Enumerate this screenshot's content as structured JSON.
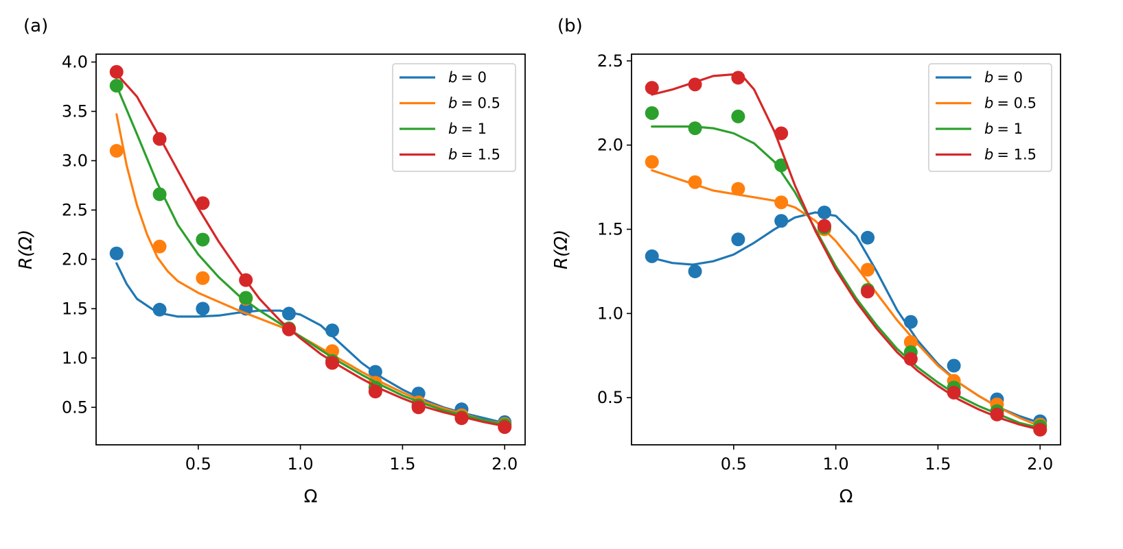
{
  "chart_data": [
    {
      "type": "line",
      "panel_label": "(a)",
      "xlabel": "Ω",
      "ylabel": "R(Ω)",
      "xlim": [
        0.0,
        2.1
      ],
      "ylim": [
        0.12,
        4.08
      ],
      "xticks": [
        0.5,
        1.0,
        1.5,
        2.0
      ],
      "xtick_labels": [
        "0.5",
        "1.0",
        "1.5",
        "2.0"
      ],
      "yticks": [
        0.5,
        1.0,
        1.5,
        2.0,
        2.5,
        3.0,
        3.5,
        4.0
      ],
      "ytick_labels": [
        "0.5",
        "1.0",
        "1.5",
        "2.0",
        "2.5",
        "3.0",
        "3.5",
        "4.0"
      ],
      "legend_position": "top-right",
      "series": [
        {
          "name": "b = 0",
          "label_var": "b",
          "label_val": "= 0",
          "color": "#1f77b4",
          "points": {
            "x": [
              0.1,
              0.311,
              0.522,
              0.733,
              0.944,
              1.156,
              1.367,
              1.578,
              1.789,
              2.0
            ],
            "y": [
              2.06,
              1.49,
              1.5,
              1.5,
              1.45,
              1.28,
              0.86,
              0.64,
              0.48,
              0.35
            ]
          },
          "curve": {
            "x": [
              0.1,
              0.15,
              0.2,
              0.3,
              0.4,
              0.5,
              0.6,
              0.7,
              0.8,
              0.9,
              1.0,
              1.1,
              1.2,
              1.3,
              1.4,
              1.5,
              1.6,
              1.7,
              1.8,
              1.9,
              2.0
            ],
            "y": [
              1.96,
              1.75,
              1.6,
              1.46,
              1.42,
              1.42,
              1.43,
              1.46,
              1.48,
              1.48,
              1.44,
              1.33,
              1.14,
              0.95,
              0.8,
              0.68,
              0.58,
              0.5,
              0.44,
              0.39,
              0.34
            ]
          }
        },
        {
          "name": "b = 0.5",
          "label_var": "b",
          "label_val": "= 0.5",
          "color": "#ff7f0e",
          "points": {
            "x": [
              0.1,
              0.311,
              0.522,
              0.733,
              0.944,
              1.156,
              1.367,
              1.578,
              1.789,
              2.0
            ],
            "y": [
              3.1,
              2.13,
              1.81,
              1.6,
              1.3,
              1.07,
              0.75,
              0.55,
              0.42,
              0.33
            ]
          },
          "curve": {
            "x": [
              0.1,
              0.15,
              0.2,
              0.25,
              0.3,
              0.35,
              0.4,
              0.5,
              0.6,
              0.7,
              0.8,
              0.9,
              1.0,
              1.1,
              1.2,
              1.3,
              1.4,
              1.5,
              1.6,
              1.7,
              1.8,
              1.9,
              2.0
            ],
            "y": [
              3.47,
              2.95,
              2.55,
              2.25,
              2.02,
              1.88,
              1.78,
              1.66,
              1.57,
              1.48,
              1.4,
              1.32,
              1.22,
              1.1,
              0.98,
              0.86,
              0.75,
              0.65,
              0.56,
              0.49,
              0.43,
              0.37,
              0.33
            ]
          }
        },
        {
          "name": "b = 1",
          "label_var": "b",
          "label_val": "= 1",
          "color": "#2ca02c",
          "points": {
            "x": [
              0.1,
              0.311,
              0.522,
              0.733,
              0.944,
              1.156,
              1.367,
              1.578,
              1.789,
              2.0
            ],
            "y": [
              3.76,
              2.66,
              2.2,
              1.61,
              1.3,
              0.97,
              0.7,
              0.52,
              0.4,
              0.32
            ]
          },
          "curve": {
            "x": [
              0.1,
              0.2,
              0.3,
              0.4,
              0.5,
              0.6,
              0.7,
              0.8,
              0.9,
              1.0,
              1.1,
              1.2,
              1.3,
              1.4,
              1.5,
              1.6,
              1.7,
              1.8,
              1.9,
              2.0
            ],
            "y": [
              3.76,
              3.27,
              2.77,
              2.35,
              2.05,
              1.82,
              1.63,
              1.48,
              1.35,
              1.22,
              1.08,
              0.95,
              0.83,
              0.72,
              0.62,
              0.54,
              0.47,
              0.42,
              0.37,
              0.32
            ]
          }
        },
        {
          "name": "b = 1.5",
          "label_var": "b",
          "label_val": "= 1.5",
          "color": "#d62728",
          "points": {
            "x": [
              0.1,
              0.311,
              0.522,
              0.733,
              0.944,
              1.156,
              1.367,
              1.578,
              1.789,
              2.0
            ],
            "y": [
              3.9,
              3.22,
              2.57,
              1.79,
              1.29,
              0.95,
              0.66,
              0.5,
              0.39,
              0.3
            ]
          },
          "curve": {
            "x": [
              0.1,
              0.2,
              0.3,
              0.4,
              0.5,
              0.6,
              0.7,
              0.8,
              0.9,
              1.0,
              1.1,
              1.2,
              1.3,
              1.4,
              1.5,
              1.6,
              1.7,
              1.8,
              1.9,
              2.0
            ],
            "y": [
              3.88,
              3.65,
              3.28,
              2.9,
              2.52,
              2.18,
              1.88,
              1.6,
              1.38,
              1.2,
              1.04,
              0.91,
              0.79,
              0.68,
              0.59,
              0.51,
              0.45,
              0.4,
              0.35,
              0.31
            ]
          }
        }
      ]
    },
    {
      "type": "line",
      "panel_label": "(b)",
      "xlabel": "Ω",
      "ylabel": "R(Ω)",
      "xlim": [
        0.0,
        2.1
      ],
      "ylim": [
        0.22,
        2.54
      ],
      "xticks": [
        0.5,
        1.0,
        1.5,
        2.0
      ],
      "xtick_labels": [
        "0.5",
        "1.0",
        "1.5",
        "2.0"
      ],
      "yticks": [
        0.5,
        1.0,
        1.5,
        2.0,
        2.5
      ],
      "ytick_labels": [
        "0.5",
        "1.0",
        "1.5",
        "2.0",
        "2.5"
      ],
      "legend_position": "top-right",
      "series": [
        {
          "name": "b = 0",
          "label_var": "b",
          "label_val": "= 0",
          "color": "#1f77b4",
          "points": {
            "x": [
              0.1,
              0.311,
              0.522,
              0.733,
              0.944,
              1.156,
              1.367,
              1.578,
              1.789,
              2.0
            ],
            "y": [
              1.34,
              1.25,
              1.44,
              1.55,
              1.6,
              1.45,
              0.95,
              0.69,
              0.49,
              0.36
            ]
          },
          "curve": {
            "x": [
              0.1,
              0.2,
              0.3,
              0.4,
              0.5,
              0.6,
              0.7,
              0.8,
              0.9,
              1.0,
              1.1,
              1.2,
              1.3,
              1.4,
              1.5,
              1.6,
              1.7,
              1.8,
              1.9,
              2.0
            ],
            "y": [
              1.33,
              1.3,
              1.29,
              1.31,
              1.35,
              1.42,
              1.5,
              1.57,
              1.6,
              1.58,
              1.46,
              1.25,
              1.02,
              0.84,
              0.7,
              0.59,
              0.51,
              0.44,
              0.39,
              0.35
            ]
          }
        },
        {
          "name": "b = 0.5",
          "label_var": "b",
          "label_val": "= 0.5",
          "color": "#ff7f0e",
          "points": {
            "x": [
              0.1,
              0.311,
              0.522,
              0.733,
              0.944,
              1.156,
              1.367,
              1.578,
              1.789,
              2.0
            ],
            "y": [
              1.9,
              1.78,
              1.74,
              1.66,
              1.5,
              1.26,
              0.83,
              0.6,
              0.46,
              0.34
            ]
          },
          "curve": {
            "x": [
              0.1,
              0.2,
              0.3,
              0.4,
              0.5,
              0.6,
              0.7,
              0.8,
              0.9,
              1.0,
              1.1,
              1.2,
              1.3,
              1.4,
              1.5,
              1.6,
              1.7,
              1.8,
              1.9,
              2.0
            ],
            "y": [
              1.85,
              1.81,
              1.77,
              1.73,
              1.71,
              1.69,
              1.67,
              1.63,
              1.55,
              1.43,
              1.28,
              1.12,
              0.96,
              0.82,
              0.69,
              0.59,
              0.51,
              0.44,
              0.38,
              0.33
            ]
          }
        },
        {
          "name": "b = 1",
          "label_var": "b",
          "label_val": "= 1",
          "color": "#2ca02c",
          "points": {
            "x": [
              0.1,
              0.311,
              0.522,
              0.733,
              0.944,
              1.156,
              1.367,
              1.578,
              1.789,
              2.0
            ],
            "y": [
              2.19,
              2.1,
              2.17,
              1.88,
              1.51,
              1.14,
              0.77,
              0.56,
              0.42,
              0.33
            ]
          },
          "curve": {
            "x": [
              0.1,
              0.2,
              0.3,
              0.4,
              0.5,
              0.6,
              0.7,
              0.8,
              0.9,
              1.0,
              1.1,
              1.2,
              1.3,
              1.4,
              1.5,
              1.6,
              1.7,
              1.8,
              1.9,
              2.0
            ],
            "y": [
              2.11,
              2.11,
              2.11,
              2.1,
              2.07,
              2.01,
              1.9,
              1.72,
              1.5,
              1.28,
              1.09,
              0.93,
              0.79,
              0.68,
              0.59,
              0.51,
              0.45,
              0.4,
              0.35,
              0.32
            ]
          }
        },
        {
          "name": "b = 1.5",
          "label_var": "b",
          "label_val": "= 1.5",
          "color": "#d62728",
          "points": {
            "x": [
              0.1,
              0.311,
              0.522,
              0.733,
              0.944,
              1.156,
              1.367,
              1.578,
              1.789,
              2.0
            ],
            "y": [
              2.34,
              2.36,
              2.4,
              2.07,
              1.52,
              1.13,
              0.73,
              0.53,
              0.4,
              0.31
            ]
          },
          "curve": {
            "x": [
              0.1,
              0.2,
              0.3,
              0.4,
              0.5,
              0.55,
              0.6,
              0.7,
              0.8,
              0.9,
              1.0,
              1.1,
              1.2,
              1.3,
              1.4,
              1.5,
              1.6,
              1.7,
              1.8,
              1.9,
              2.0
            ],
            "y": [
              2.3,
              2.33,
              2.37,
              2.41,
              2.42,
              2.4,
              2.33,
              2.08,
              1.76,
              1.49,
              1.26,
              1.07,
              0.91,
              0.77,
              0.66,
              0.57,
              0.49,
              0.43,
              0.38,
              0.34,
              0.31
            ]
          }
        }
      ]
    }
  ]
}
